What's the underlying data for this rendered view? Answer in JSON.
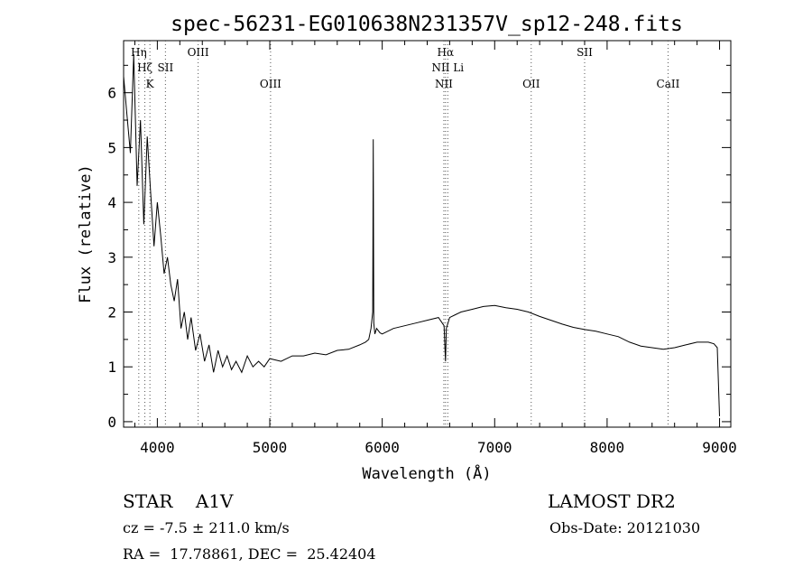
{
  "chart_data": {
    "type": "line",
    "title": "spec-56231-EG010638N231357V_sp12-248.fits",
    "xlabel": "Wavelength (Å)",
    "ylabel": "Flux (relative)",
    "xlim": [
      3700,
      9100
    ],
    "ylim": [
      -0.1,
      6.95
    ],
    "x_ticks": [
      4000,
      5000,
      6000,
      7000,
      8000,
      9000
    ],
    "y_ticks": [
      0,
      1,
      2,
      3,
      4,
      5,
      6
    ],
    "grid": false,
    "series": [
      {
        "color": "#000000",
        "x": [
          3700,
          3730,
          3760,
          3790,
          3820,
          3850,
          3880,
          3910,
          3940,
          3970,
          4000,
          4030,
          4060,
          4090,
          4120,
          4150,
          4180,
          4210,
          4240,
          4270,
          4300,
          4340,
          4380,
          4420,
          4460,
          4500,
          4540,
          4580,
          4620,
          4660,
          4700,
          4750,
          4800,
          4850,
          4900,
          4950,
          5000,
          5100,
          5200,
          5300,
          5400,
          5500,
          5600,
          5700,
          5800,
          5850,
          5880,
          5900,
          5915,
          5920,
          5925,
          5935,
          5950,
          5980,
          6000,
          6100,
          6200,
          6300,
          6400,
          6500,
          6550,
          6560,
          6563,
          6570,
          6600,
          6650,
          6700,
          6800,
          6900,
          7000,
          7100,
          7200,
          7300,
          7400,
          7500,
          7600,
          7700,
          7800,
          7900,
          8000,
          8100,
          8200,
          8300,
          8400,
          8500,
          8600,
          8700,
          8800,
          8900,
          8950,
          8980,
          9000
        ],
        "y": [
          6.3,
          5.6,
          4.9,
          6.7,
          4.3,
          5.5,
          3.6,
          5.2,
          4.2,
          3.2,
          4.0,
          3.4,
          2.7,
          3.0,
          2.5,
          2.2,
          2.6,
          1.7,
          2.0,
          1.5,
          1.9,
          1.3,
          1.6,
          1.1,
          1.4,
          0.9,
          1.3,
          1.0,
          1.2,
          0.95,
          1.1,
          0.9,
          1.2,
          1.0,
          1.1,
          1.0,
          1.15,
          1.1,
          1.2,
          1.2,
          1.25,
          1.22,
          1.3,
          1.32,
          1.4,
          1.45,
          1.5,
          1.7,
          2.0,
          5.15,
          1.8,
          1.6,
          1.7,
          1.62,
          1.6,
          1.7,
          1.75,
          1.8,
          1.85,
          1.9,
          1.75,
          1.25,
          1.1,
          1.7,
          1.9,
          1.95,
          2.0,
          2.05,
          2.1,
          2.12,
          2.08,
          2.05,
          2.0,
          1.92,
          1.85,
          1.78,
          1.72,
          1.68,
          1.65,
          1.6,
          1.55,
          1.45,
          1.38,
          1.35,
          1.32,
          1.35,
          1.4,
          1.45,
          1.45,
          1.42,
          1.35,
          0.1
        ]
      }
    ],
    "lines": [
      {
        "name": "Hη",
        "x": 3835,
        "row": 1
      },
      {
        "name": "Hζ",
        "x": 3889,
        "row": 2
      },
      {
        "name": "K",
        "x": 3934,
        "row": 3
      },
      {
        "name": "SII",
        "x": 4072,
        "row": 2
      },
      {
        "name": "OIII",
        "x": 4363,
        "row": 1
      },
      {
        "name": "OIII",
        "x": 5007,
        "row": 3
      },
      {
        "name": "Hα",
        "x": 6563,
        "row": 1
      },
      {
        "name": "NII Li",
        "x": 6583,
        "row": 2
      },
      {
        "name": "NII",
        "x": 6548,
        "row": 3
      },
      {
        "name": "OII",
        "x": 7325,
        "row": 3
      },
      {
        "name": "SII",
        "x": 7800,
        "row": 1
      },
      {
        "name": "CaII",
        "x": 8542,
        "row": 3
      }
    ]
  },
  "info": {
    "star_line": "STAR    A1V",
    "survey": "LAMOST DR2",
    "cz_line": "cz = -7.5 ± 211.0 km/s",
    "obs_date": "Obs-Date: 20121030",
    "radec_line": "RA =  17.78861, DEC =  25.42404"
  }
}
